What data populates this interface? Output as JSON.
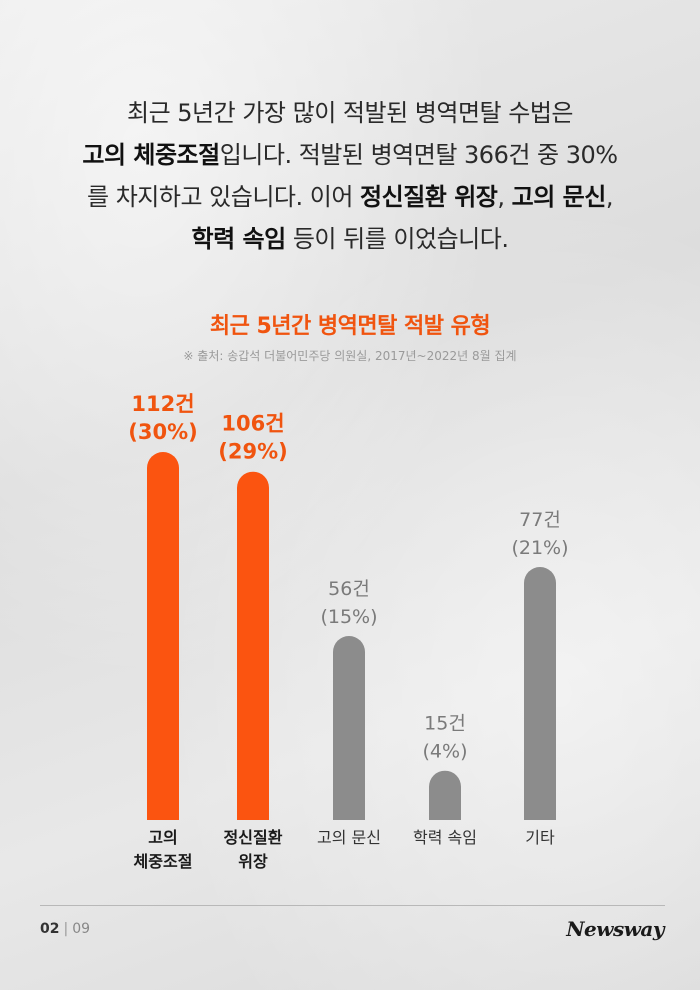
{
  "intro": {
    "line1": "최근 5년간 가장 많이 적발된 병역면탈 수법은",
    "line2_bold": "고의 체중조절",
    "line2_rest": "입니다. 적발된 병역면탈 366건 중 30%",
    "line3_pre": "를 차지하고 있습니다. 이어 ",
    "line3_bold1": "정신질환 위장",
    "line3_mid": ", ",
    "line3_bold2": "고의 문신",
    "line3_end": ",",
    "line4_bold": "학력 속임",
    "line4_rest": " 등이 뒤를 이었습니다."
  },
  "chart_title": "최근 5년간 병역면탈 적발 유형",
  "chart_source": "※ 출처: 송갑석 더불어민주당 의원실, 2017년~2022년 8월 집계",
  "colors": {
    "highlight": "#fb5410",
    "normal": "#8c8c8c",
    "highlight_text": "#f0540f",
    "normal_text": "#7a7a7a"
  },
  "chart_data": {
    "type": "bar",
    "title": "최근 5년간 병역면탈 적발 유형",
    "categories": [
      "고의 체중조절",
      "정신질환 위장",
      "고의 문신",
      "학력 속임",
      "기타"
    ],
    "category_lines": [
      [
        "고의",
        "체중조절"
      ],
      [
        "정신질환",
        "위장"
      ],
      [
        "고의 문신"
      ],
      [
        "학력 속임"
      ],
      [
        "기타"
      ]
    ],
    "values": [
      112,
      106,
      56,
      15,
      77
    ],
    "value_labels": [
      "112건",
      "106건",
      "56건",
      "15건",
      "77건"
    ],
    "percent_labels": [
      "(30%)",
      "(29%)",
      "(15%)",
      "(4%)",
      "(21%)"
    ],
    "highlighted": [
      true,
      true,
      false,
      false,
      false
    ],
    "ylim": [
      0,
      112
    ]
  },
  "footer": {
    "page_current": "02",
    "separator": "|",
    "page_total": "09",
    "brand": "Newsway"
  }
}
